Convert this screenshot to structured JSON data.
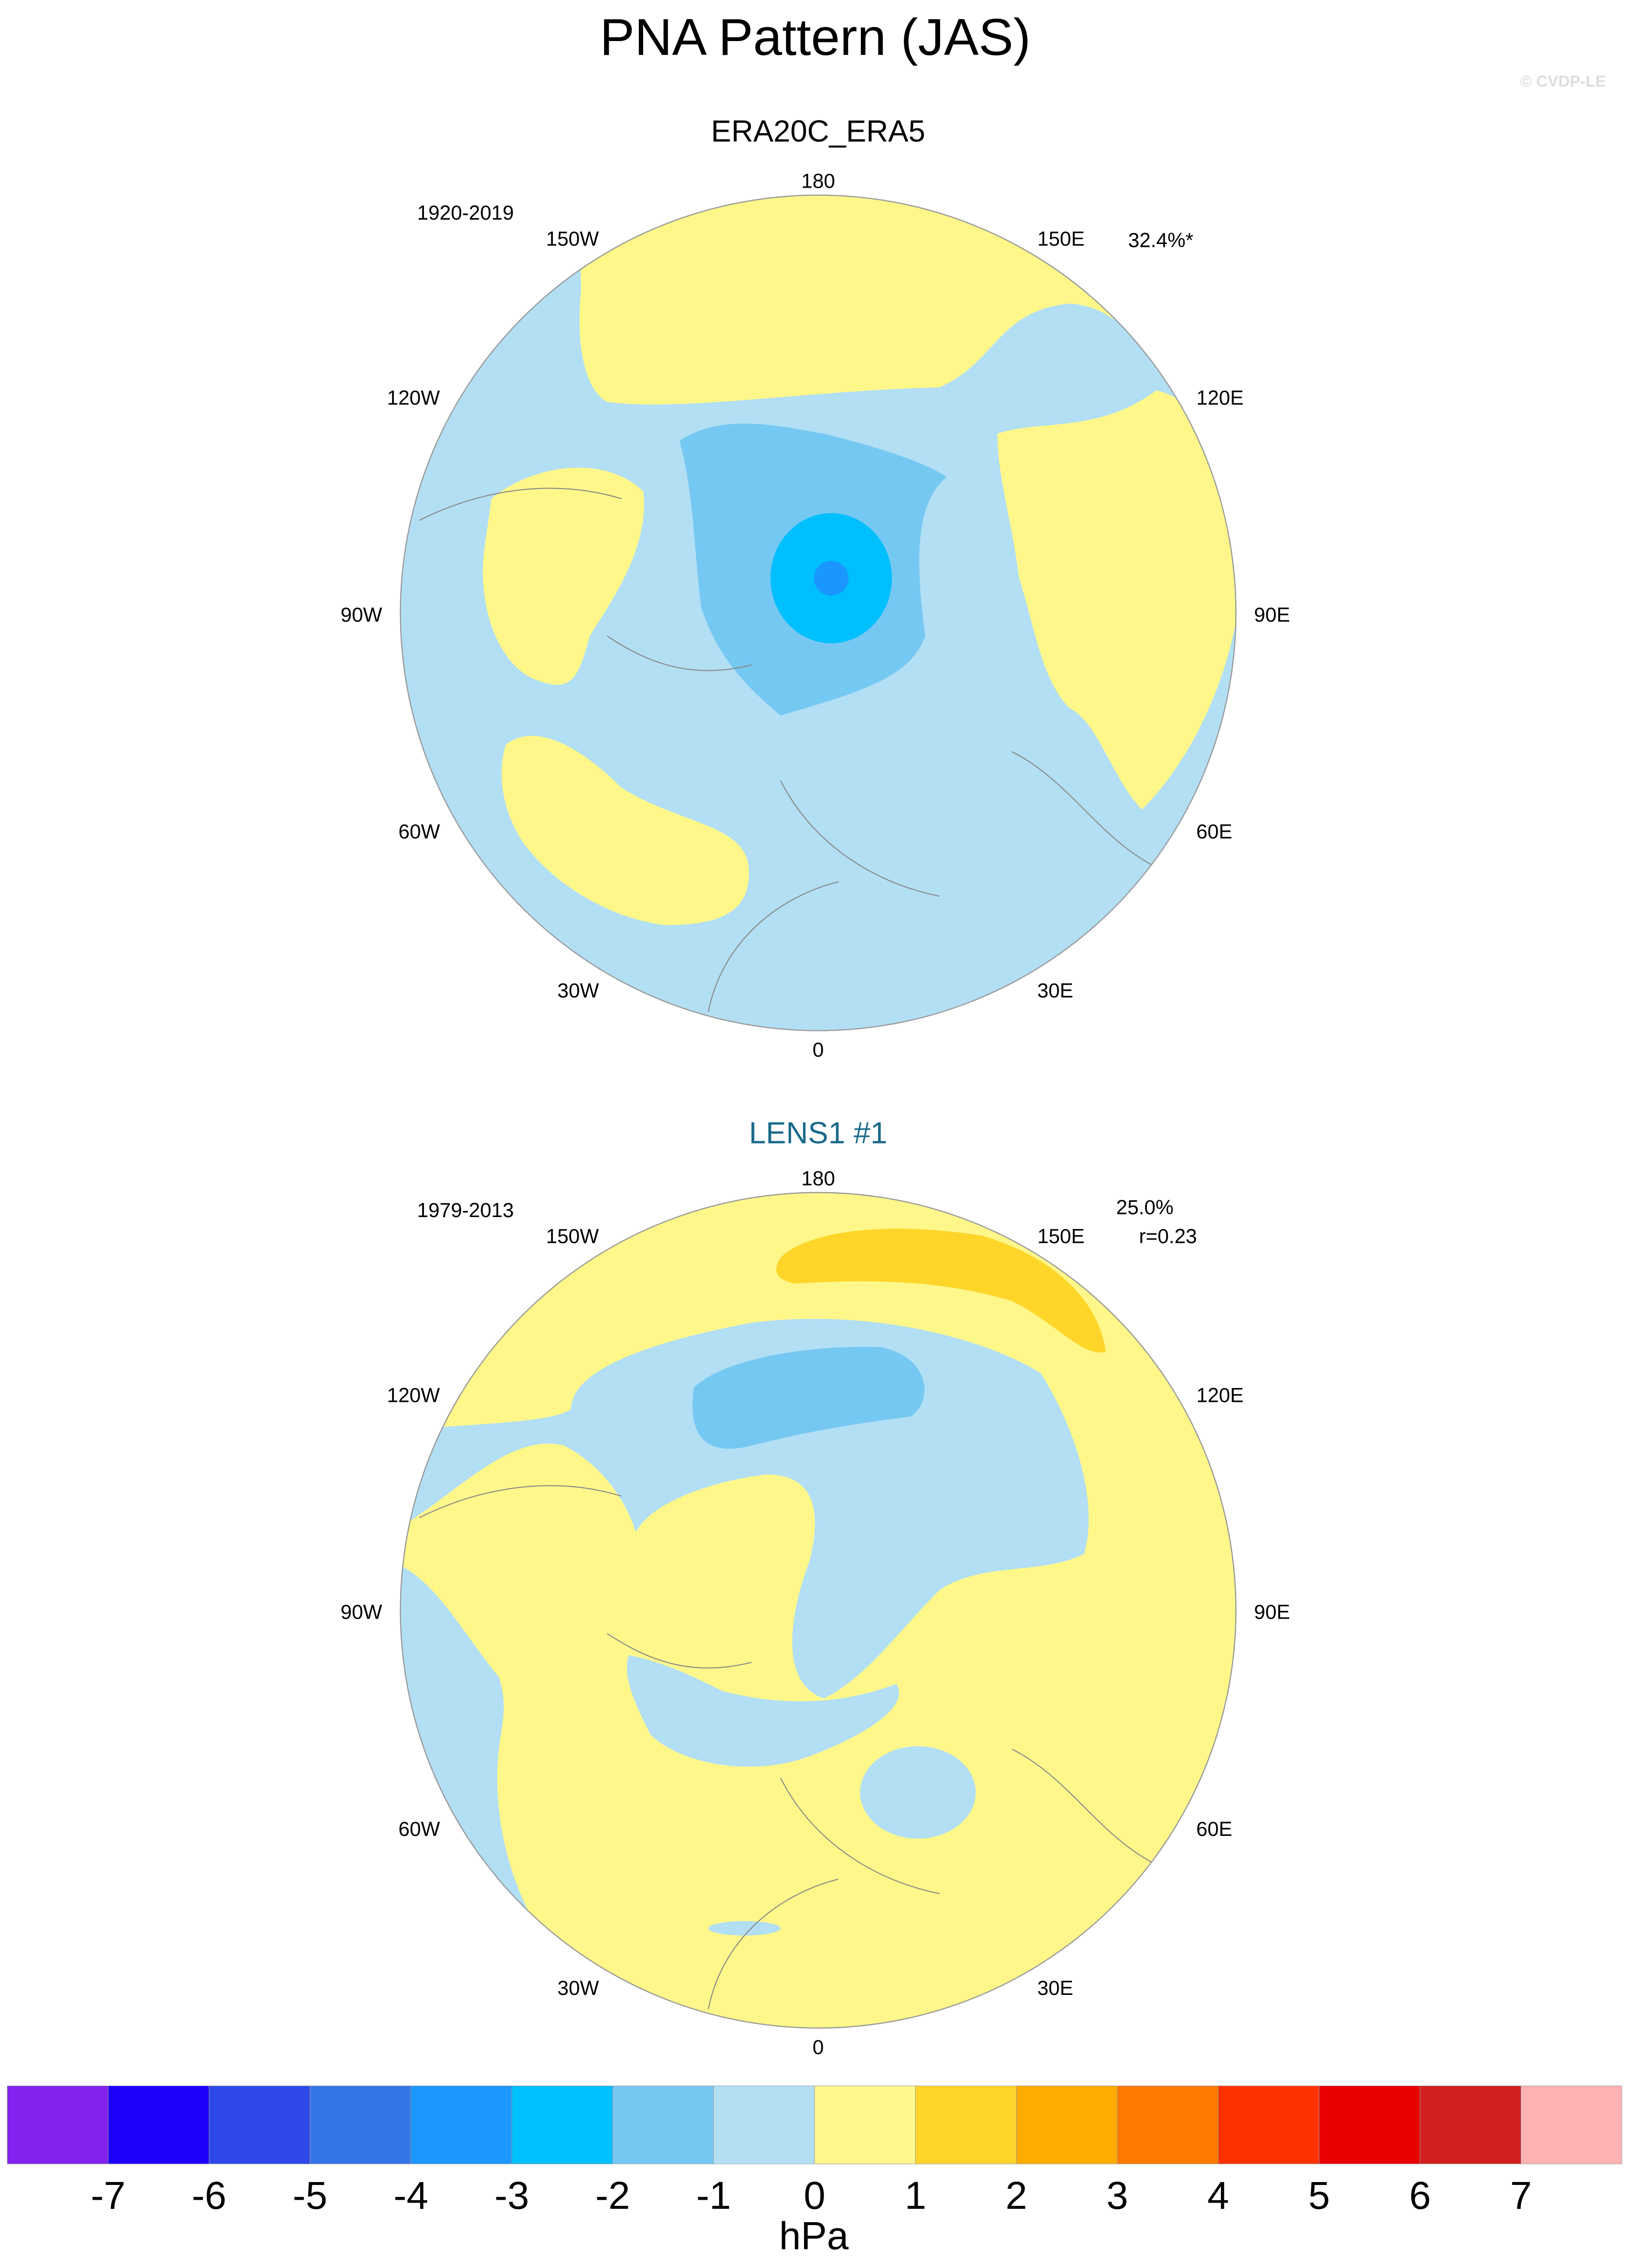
{
  "title": "PNA Pattern (JAS)",
  "copyright": "© CVDP-LE",
  "colors": {
    "second_panel_title": "#1a6a8a",
    "land_outline": "#888888",
    "map_border": "#999999"
  },
  "panels": [
    {
      "title": "ERA20C_ERA5",
      "period": "1920-2019",
      "stat_line1": "32.4%*",
      "stat_line2": "",
      "lon_labels": {
        "n": "180",
        "nw": "150W",
        "ne": "150E",
        "wnw": "120W",
        "ene": "120E",
        "w": "90W",
        "e": "90E",
        "wsw": "60W",
        "esw": "60E",
        "ssw": "30W",
        "sse": "30E",
        "s": "0"
      }
    },
    {
      "title": "LENS1 #1",
      "period": "1979-2013",
      "stat_line1": "25.0%",
      "stat_line2": "r=0.23",
      "lon_labels": {
        "n": "180",
        "nw": "150W",
        "ne": "150E",
        "wnw": "120W",
        "ene": "120E",
        "w": "90W",
        "e": "90E",
        "wsw": "60W",
        "esw": "60E",
        "ssw": "30W",
        "sse": "30E",
        "s": "0"
      }
    }
  ],
  "colorbar": {
    "unit": "hPa",
    "ticks": [
      "-7",
      "-6",
      "-5",
      "-4",
      "-3",
      "-2",
      "-1",
      "0",
      "1",
      "2",
      "3",
      "4",
      "5",
      "6",
      "7"
    ],
    "colors": [
      "#8322ee",
      "#1d00fc",
      "#2f48ea",
      "#3575ea",
      "#1b97fd",
      "#00c0fe",
      "#76c8f3",
      "#b3dff4",
      "#fff78a",
      "#ffd52a",
      "#ffab00",
      "#ff7a00",
      "#ff3100",
      "#e80000",
      "#d11e1e",
      "#ffb2b2"
    ]
  }
}
